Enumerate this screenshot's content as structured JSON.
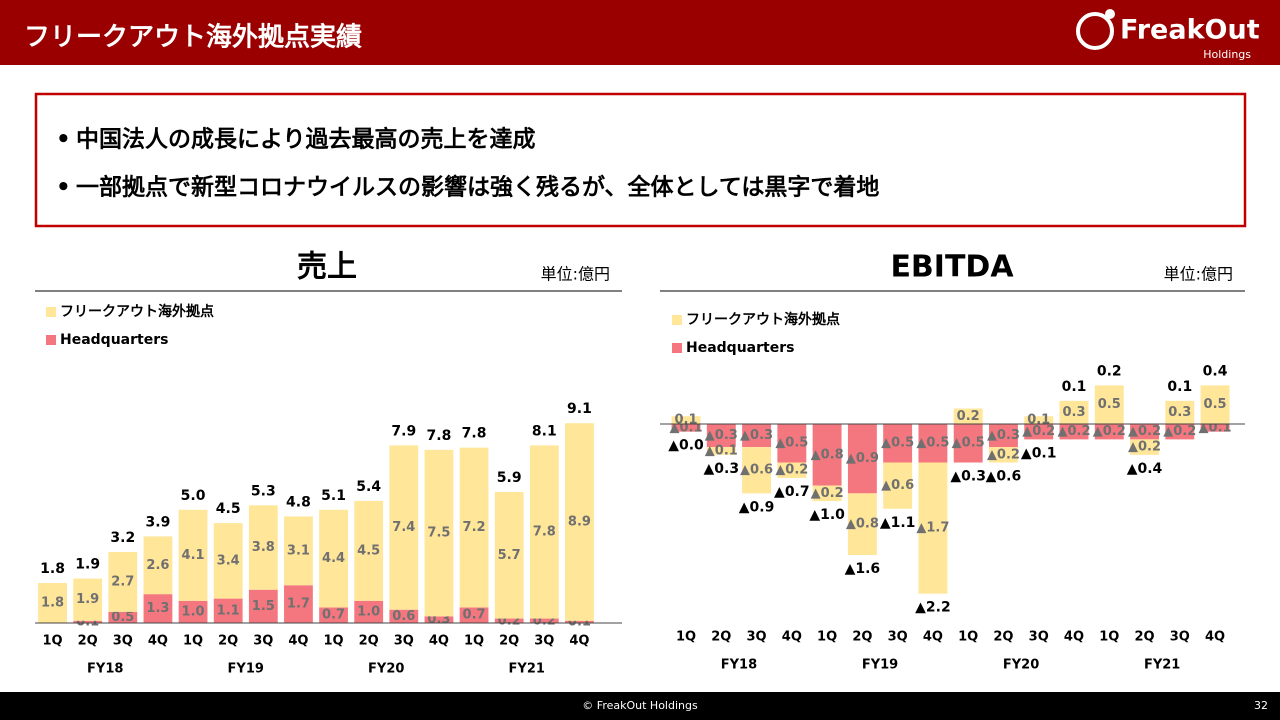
{
  "header": {
    "title": "フリークアウト海外拠点実績",
    "logo_name": "FreakOut",
    "logo_sub": "Holdings"
  },
  "bullets": [
    "中国法人の成長により過去最高の売上を達成",
    "一部拠点で新型コロナウイルスの影響は強く残るが、全体としては黒字で着地"
  ],
  "chart_data": [
    {
      "type": "bar",
      "stacked": true,
      "title": "売上",
      "unit": "単位:億円",
      "categories": [
        "1Q",
        "2Q",
        "3Q",
        "4Q",
        "1Q",
        "2Q",
        "3Q",
        "4Q",
        "1Q",
        "2Q",
        "3Q",
        "4Q",
        "1Q",
        "2Q",
        "3Q",
        "4Q"
      ],
      "groups": [
        "FY18",
        "FY19",
        "FY20",
        "FY21"
      ],
      "ylim": [
        0,
        10
      ],
      "series": [
        {
          "name": "フリークアウト海外拠点",
          "color": "#ffe699",
          "values": [
            1.8,
            1.9,
            2.7,
            2.6,
            4.1,
            3.4,
            3.8,
            3.1,
            4.4,
            4.5,
            7.4,
            7.5,
            7.2,
            5.7,
            7.8,
            8.9
          ],
          "value_labels": [
            "1.8",
            "1.9",
            "2.7",
            "2.6",
            "4.1",
            "3.4",
            "3.8",
            "3.1",
            "4.4",
            "4.5",
            "7.4",
            "7.5",
            "7.2",
            "5.7",
            "7.8",
            "8.9"
          ]
        },
        {
          "name": "Headquarters",
          "color": "#f4777f",
          "values": [
            null,
            0.1,
            0.5,
            1.3,
            1.0,
            1.1,
            1.5,
            1.7,
            0.7,
            1.0,
            0.6,
            0.3,
            0.7,
            0.2,
            0.2,
            0.1
          ],
          "value_labels": [
            null,
            "0.1",
            "0.5",
            "1.3",
            "1.0",
            "1.1",
            "1.5",
            "1.7",
            "0.7",
            "1.0",
            "0.6",
            "0.3",
            "0.7",
            "0.2",
            "0.2",
            "0.1"
          ]
        }
      ],
      "totals": {
        "values": [
          1.8,
          1.9,
          3.2,
          3.9,
          5.0,
          4.5,
          5.3,
          4.8,
          5.1,
          5.4,
          7.9,
          7.8,
          7.8,
          5.9,
          8.1,
          9.1
        ],
        "value_labels": [
          "1.8",
          "1.9",
          "3.2",
          "3.9",
          "5.0",
          "4.5",
          "5.3",
          "4.8",
          "5.1",
          "5.4",
          "7.9",
          "7.8",
          "7.8",
          "5.9",
          "8.1",
          "9.1"
        ]
      }
    },
    {
      "type": "bar",
      "stacked": true,
      "title": "EBITDA",
      "unit": "単位:億円",
      "categories": [
        "1Q",
        "2Q",
        "3Q",
        "4Q",
        "1Q",
        "2Q",
        "3Q",
        "4Q",
        "1Q",
        "2Q",
        "3Q",
        "4Q",
        "1Q",
        "2Q",
        "3Q",
        "4Q"
      ],
      "groups": [
        "FY18",
        "FY19",
        "FY20",
        "FY21"
      ],
      "ylim": [
        -2.4,
        0.7
      ],
      "series": [
        {
          "name": "フリークアウト海外拠点",
          "color": "#ffe699",
          "values": [
            0.1,
            -0.1,
            -0.6,
            -0.2,
            -0.2,
            -0.8,
            -0.6,
            -1.7,
            0.2,
            -0.2,
            0.1,
            0.3,
            0.5,
            -0.2,
            0.3,
            0.5
          ],
          "value_labels": [
            "0.1",
            "▲0.1",
            "▲0.6",
            "▲0.2",
            "▲0.2",
            "▲0.8",
            "▲0.6",
            "▲1.7",
            "0.2",
            "▲0.2",
            "0.1",
            "0.3",
            "0.5",
            "▲0.2",
            "0.3",
            "0.5"
          ]
        },
        {
          "name": "Headquarters",
          "color": "#f4777f",
          "values": [
            -0.1,
            -0.3,
            -0.3,
            -0.5,
            -0.8,
            -0.9,
            -0.5,
            -0.5,
            -0.5,
            -0.3,
            -0.2,
            -0.2,
            -0.2,
            -0.2,
            -0.2,
            -0.1
          ],
          "value_labels": [
            "▲0.1",
            "▲0.3",
            "▲0.3",
            "▲0.5",
            "▲0.8",
            "▲0.9",
            "▲0.5",
            "▲0.5",
            "▲0.5",
            "▲0.3",
            "▲0.2",
            "▲0.2",
            "▲0.2",
            "▲0.2",
            "▲0.2",
            "▲0.1"
          ]
        }
      ],
      "totals": {
        "values": [
          0,
          -0.3,
          -0.9,
          -0.7,
          -1.0,
          -1.6,
          -1.1,
          -2.2,
          -0.3,
          -0.6,
          -0.1,
          0.1,
          0.2,
          -0.4,
          0.1,
          0.4
        ],
        "value_labels": [
          "▲0.0",
          "▲0.3",
          "▲0.9",
          "▲0.7",
          "▲1.0",
          "▲1.6",
          "▲1.1",
          "▲2.2",
          "▲0.3",
          "▲0.6",
          "▲0.1",
          "0.1",
          "0.2",
          "▲0.4",
          "0.1",
          "0.4"
        ]
      }
    }
  ],
  "footer": {
    "copyright": "© FreakOut Holdings",
    "page": "32"
  }
}
